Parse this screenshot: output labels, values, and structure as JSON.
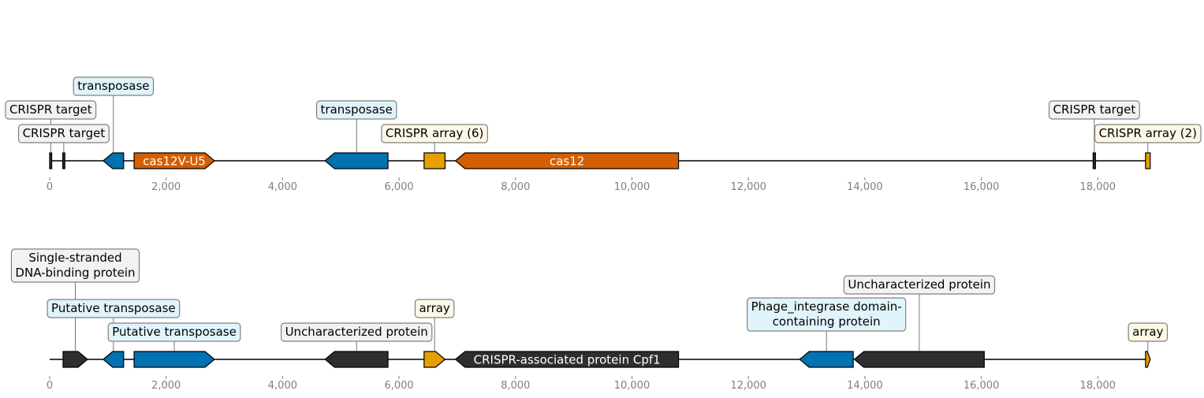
{
  "colors": {
    "blue": "#0072b2",
    "orange": "#d55e00",
    "yellow": "#e69f00",
    "dark": "#2e2e2e",
    "white": "#ffffff",
    "tick": "#7f7f7f",
    "box_grey": "#f2f2f2",
    "box_blue": "#e1f4fc",
    "box_yellow": "#fdf7e5"
  },
  "tracks": [
    {
      "id": "top",
      "ticks": [
        "0",
        "2,000",
        "4,000",
        "6,000",
        "8,000",
        "10,000",
        "12,000",
        "14,000",
        "16,000",
        "18,000"
      ],
      "tick_values": [
        0,
        2000,
        4000,
        6000,
        8000,
        10000,
        12000,
        14000,
        16000,
        18000
      ],
      "range": [
        0,
        18900
      ],
      "features": [
        {
          "start": 0,
          "end": 35,
          "strand": 0,
          "color": "dark",
          "label": "CRISPR target",
          "box": "box_grey",
          "level": 2
        },
        {
          "start": 225,
          "end": 260,
          "strand": 0,
          "color": "dark",
          "label": "CRISPR target",
          "box": "box_grey",
          "level": 1
        },
        {
          "start": 920,
          "end": 1270,
          "strand": -1,
          "color": "blue",
          "label": "transposase",
          "box": "box_blue",
          "level": 3
        },
        {
          "start": 1450,
          "end": 2830,
          "strand": 1,
          "color": "orange",
          "inline": "cas12V-U5"
        },
        {
          "start": 4730,
          "end": 5810,
          "strand": -1,
          "color": "blue",
          "label": "transposase",
          "box": "box_blue",
          "level": 2
        },
        {
          "start": 6430,
          "end": 6790,
          "strand": 0,
          "color": "yellow",
          "label": "CRISPR array (6)",
          "box": "box_yellow",
          "level": 1
        },
        {
          "start": 6970,
          "end": 10800,
          "strand": -1,
          "color": "orange",
          "inline": "cas12"
        },
        {
          "start": 17920,
          "end": 17960,
          "strand": 0,
          "color": "dark",
          "label": "CRISPR target",
          "box": "box_grey",
          "level": 2
        },
        {
          "start": 18820,
          "end": 18900,
          "strand": 0,
          "color": "yellow",
          "label": "CRISPR array (2)",
          "box": "box_yellow",
          "level": 1
        }
      ]
    },
    {
      "id": "bottom",
      "ticks": [
        "0",
        "2,000",
        "4,000",
        "6,000",
        "8,000",
        "10,000",
        "12,000",
        "14,000",
        "16,000",
        "18,000"
      ],
      "tick_values": [
        0,
        2000,
        4000,
        6000,
        8000,
        10000,
        12000,
        14000,
        16000,
        18000
      ],
      "range": [
        0,
        18900
      ],
      "features": [
        {
          "start": 230,
          "end": 650,
          "strand": 1,
          "color": "dark",
          "label": "Single-stranded\nDNA-binding protein",
          "box": "box_grey",
          "level": 4
        },
        {
          "start": 920,
          "end": 1270,
          "strand": -1,
          "color": "blue",
          "label": "Putative transposase",
          "box": "box_blue",
          "level": 2
        },
        {
          "start": 1450,
          "end": 2830,
          "strand": 1,
          "color": "blue",
          "label": "Putative transposase",
          "box": "box_blue",
          "level": 1
        },
        {
          "start": 4730,
          "end": 5810,
          "strand": -1,
          "color": "dark",
          "label": "Uncharacterized protein",
          "box": "box_grey",
          "level": 1
        },
        {
          "start": 6430,
          "end": 6790,
          "strand": 1,
          "color": "yellow",
          "label": "array",
          "box": "box_yellow",
          "level": 2
        },
        {
          "start": 6970,
          "end": 10800,
          "strand": -1,
          "color": "dark",
          "inline": "CRISPR-associated protein Cpf1"
        },
        {
          "start": 12880,
          "end": 13800,
          "strand": -1,
          "color": "blue",
          "label": "Phage_integrase domain-\ncontaining protein",
          "box": "box_blue",
          "level": 3
        },
        {
          "start": 13820,
          "end": 16050,
          "strand": -1,
          "color": "dark",
          "label": "Uncharacterized protein",
          "box": "box_grey",
          "level": 5
        },
        {
          "start": 18820,
          "end": 18900,
          "strand": 1,
          "color": "yellow",
          "label": "array",
          "box": "box_yellow",
          "level": 1
        }
      ]
    }
  ]
}
